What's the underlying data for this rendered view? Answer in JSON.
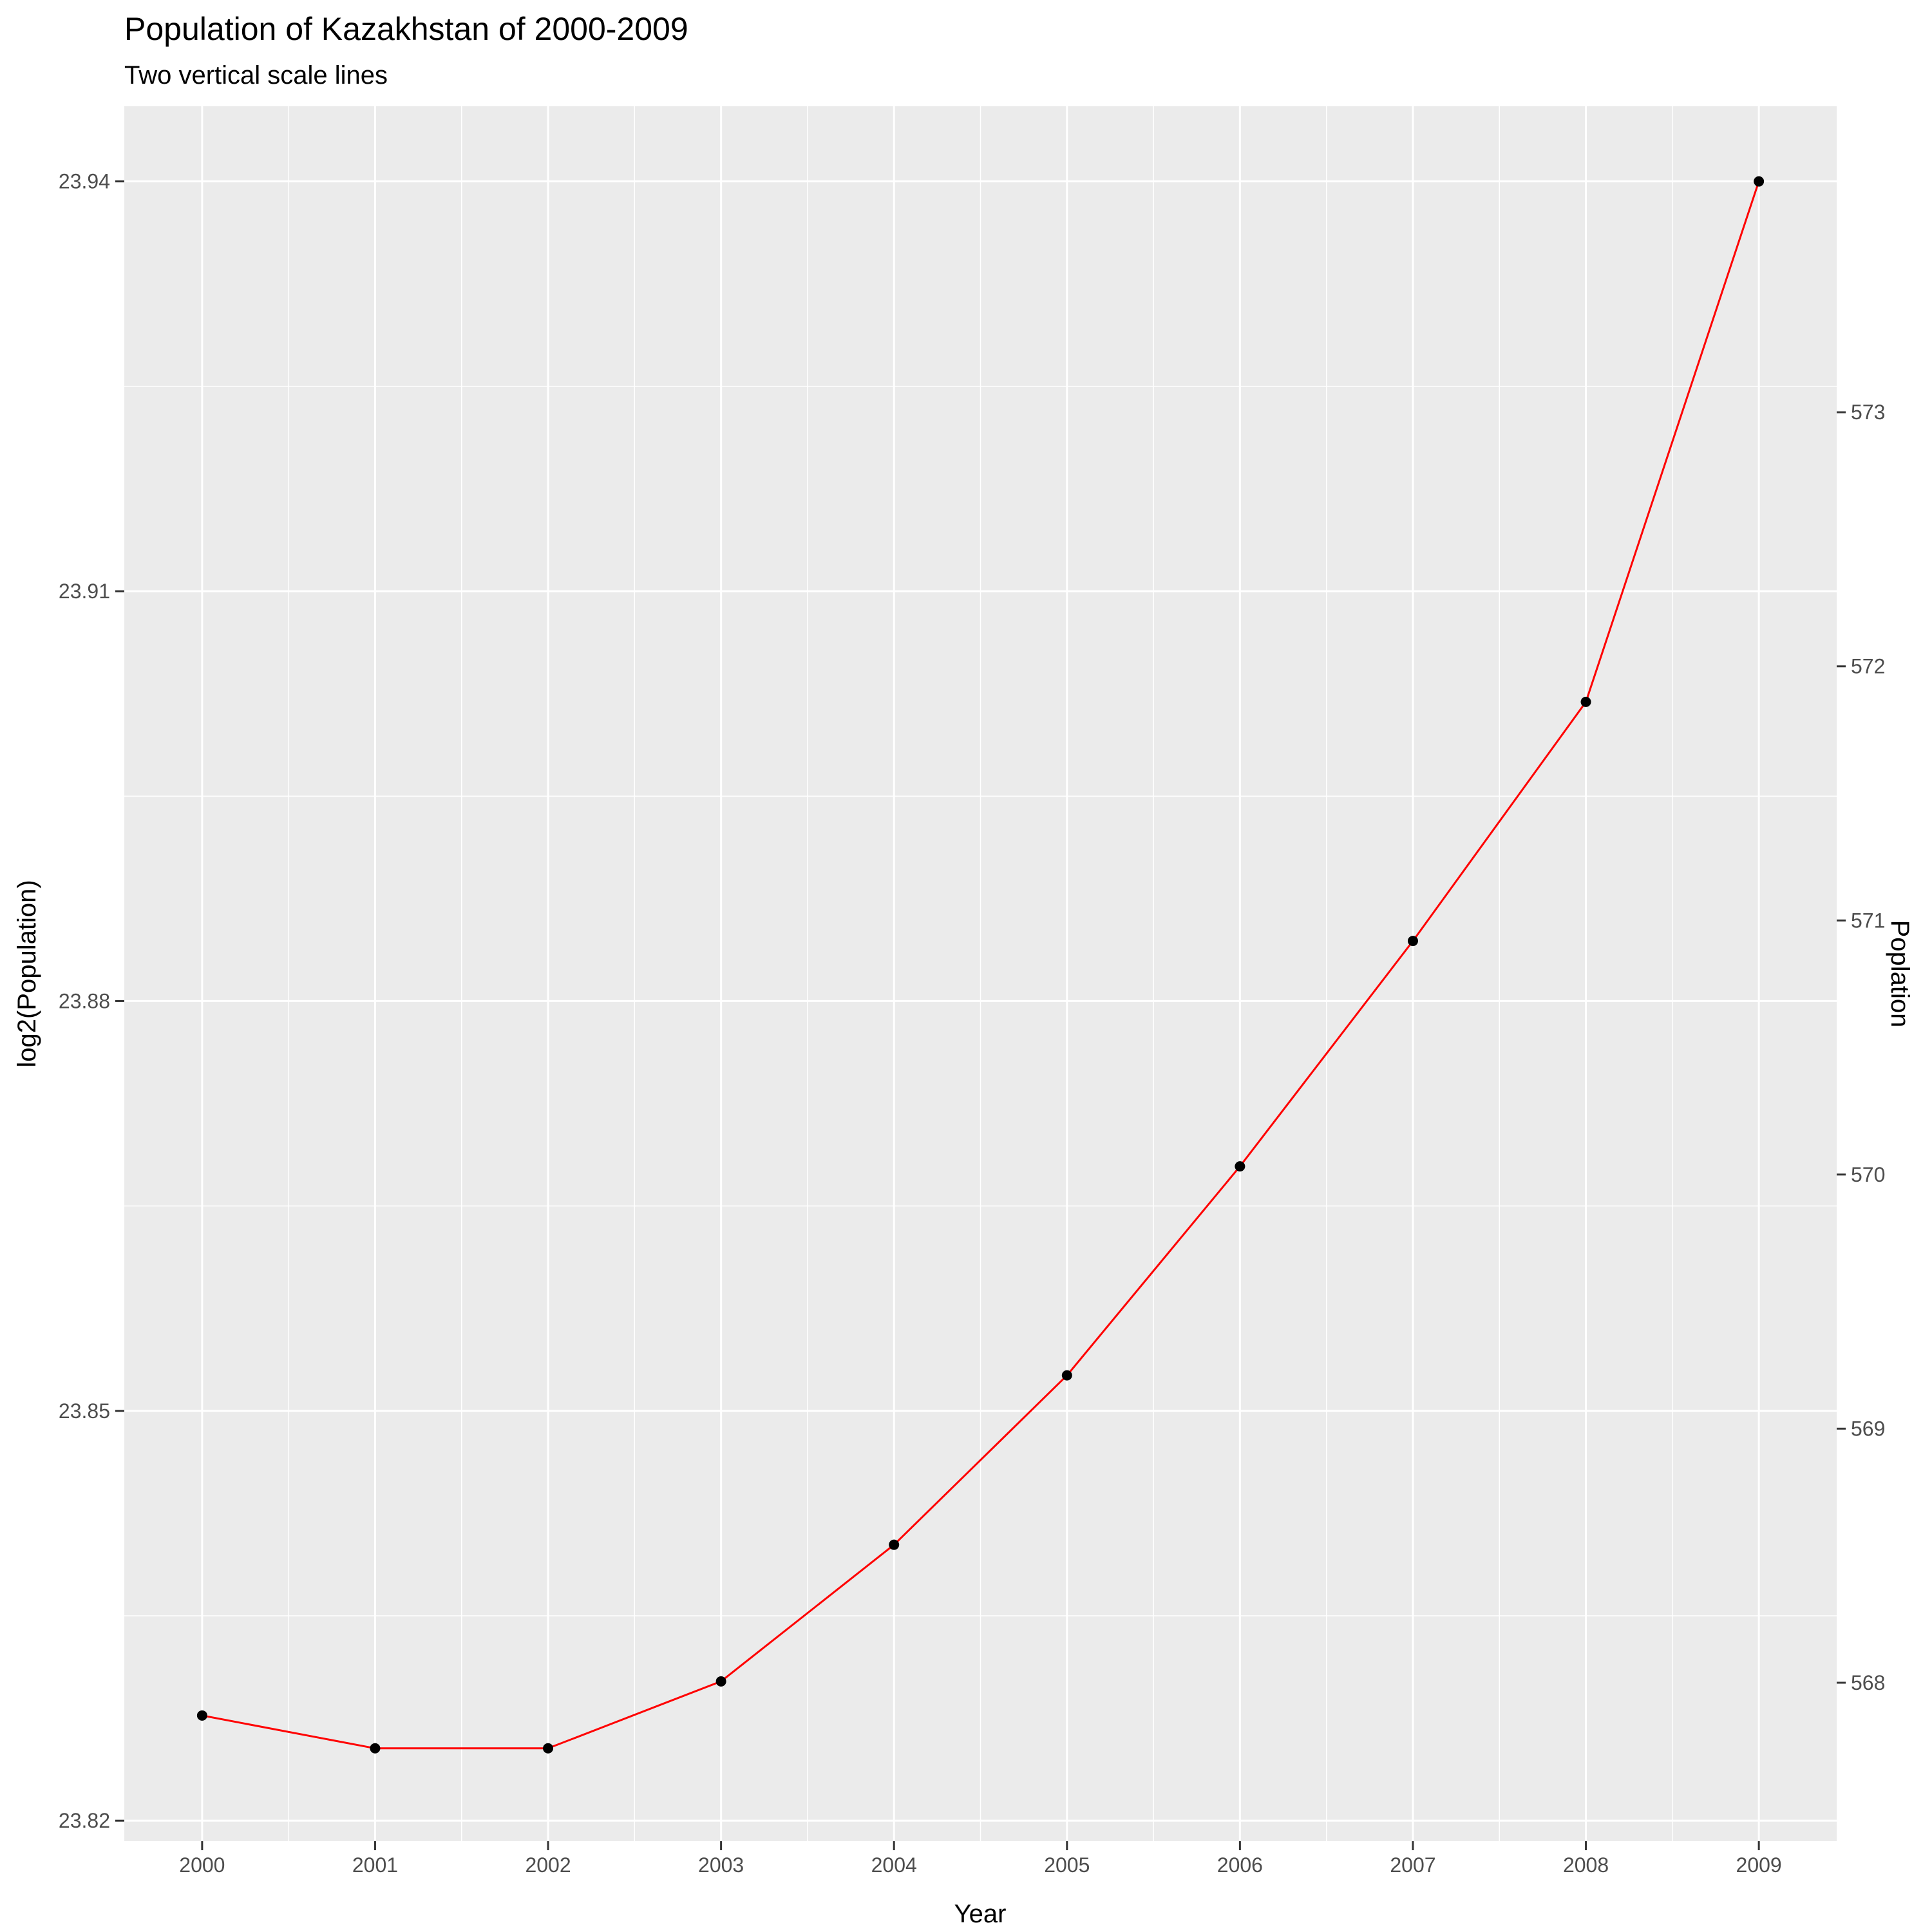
{
  "chart_data": {
    "type": "line",
    "title": "Population of Kazakhstan of 2000-2009",
    "subtitle": "Two vertical scale lines",
    "xlabel": "Year",
    "ylabel": "log2(Population)",
    "y2label": "Poplation",
    "x": [
      2000,
      2001,
      2002,
      2003,
      2004,
      2005,
      2006,
      2007,
      2008,
      2009
    ],
    "y": [
      23.8277,
      23.8253,
      23.8253,
      23.8302,
      23.8402,
      23.8526,
      23.8679,
      23.8844,
      23.9019,
      23.94
    ],
    "x_ticks": [
      "2000",
      "2001",
      "2002",
      "2003",
      "2004",
      "2005",
      "2006",
      "2007",
      "2008",
      "2009"
    ],
    "y_ticks": [
      23.82,
      23.85,
      23.88,
      23.91,
      23.94
    ],
    "y_tick_labels": [
      "23.82",
      "23.85",
      "23.88",
      "23.91",
      "23.94"
    ],
    "y2_ticks": [
      568,
      569,
      570,
      571,
      572,
      573
    ],
    "y2_tick_labels": [
      "568",
      "569",
      "570",
      "571",
      "572",
      "573"
    ],
    "y2_to_y": {
      "a": 23.8301,
      "b": 0.0186,
      "base": 568
    },
    "ylim": [
      23.8185,
      23.9455
    ],
    "xlim": [
      1999.55,
      2009.45
    ],
    "grid": true,
    "line_color": "#ff0000",
    "point_color": "#000000",
    "panel_color": "#ebebeb",
    "grid_color": "#ffffff"
  }
}
